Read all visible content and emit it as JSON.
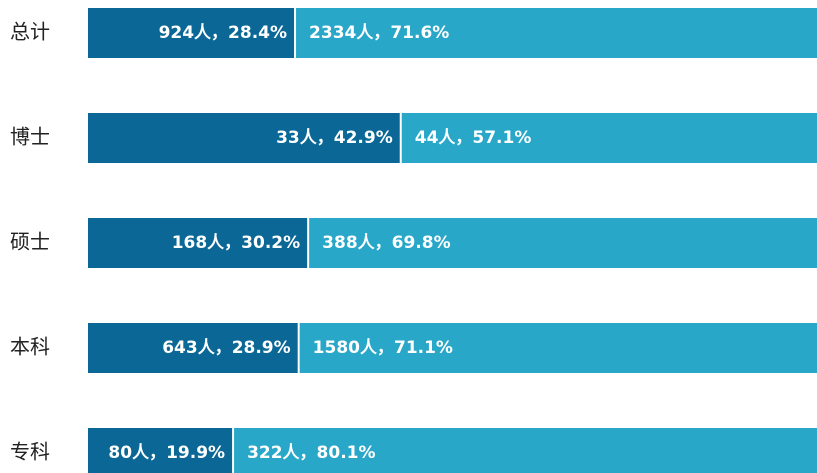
{
  "chart_data": {
    "type": "bar",
    "orientation": "horizontal",
    "stacked": true,
    "categories": [
      "总计",
      "博士",
      "硕士",
      "本科",
      "专科"
    ],
    "xlim": [
      0,
      100
    ],
    "series": [
      {
        "color": "#0b6896",
        "values": [
          28.4,
          42.9,
          30.2,
          28.9,
          19.9
        ],
        "value_labels": [
          "924人，28.4%",
          "33人，42.9%",
          "168人，30.2%",
          "643人，28.9%",
          "80人，19.9%"
        ]
      },
      {
        "color": "#28a7c8",
        "values": [
          71.6,
          57.1,
          69.8,
          71.1,
          80.1
        ],
        "value_labels": [
          "2334人，71.6%",
          "44人，57.1%",
          "388人，69.8%",
          "1580人，71.1%",
          "322人，80.1%"
        ]
      }
    ]
  }
}
